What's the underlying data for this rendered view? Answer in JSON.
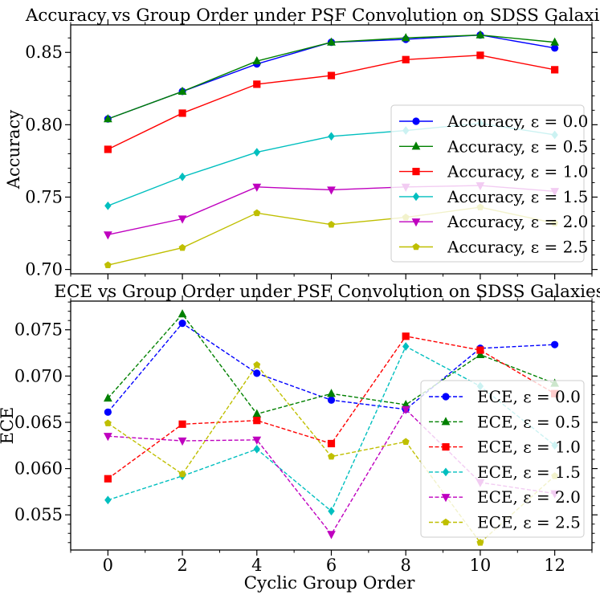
{
  "figure": {
    "xlabel": "Cyclic Group Order"
  },
  "chart_data": [
    {
      "type": "line",
      "title": "Accuracy vs Group Order under PSF Convolution on SDSS Galaxies",
      "xlabel": "",
      "ylabel": "Accuracy",
      "x": [
        0,
        2,
        4,
        6,
        8,
        10,
        12
      ],
      "xlim": [
        -1,
        13
      ],
      "ylim": [
        0.697,
        0.869
      ],
      "yticks": [
        0.7,
        0.75,
        0.8,
        0.85
      ],
      "ytick_labels": [
        "0.70",
        "0.75",
        "0.80",
        "0.85"
      ],
      "legend_loc": "lower right",
      "series": [
        {
          "name": "Accuracy, ε = 0.0",
          "color": "#0000ff",
          "marker": "circle",
          "dashed": false,
          "values": [
            0.804,
            0.823,
            0.842,
            0.857,
            0.859,
            0.862,
            0.853
          ]
        },
        {
          "name": "Accuracy, ε = 0.5",
          "color": "#008000",
          "marker": "triangle-up",
          "dashed": false,
          "values": [
            0.804,
            0.823,
            0.844,
            0.857,
            0.86,
            0.862,
            0.857
          ]
        },
        {
          "name": "Accuracy, ε = 1.0",
          "color": "#ff0000",
          "marker": "square",
          "dashed": false,
          "values": [
            0.783,
            0.808,
            0.828,
            0.834,
            0.845,
            0.848,
            0.838
          ]
        },
        {
          "name": "Accuracy, ε = 1.5",
          "color": "#00bfbf",
          "marker": "diamond",
          "dashed": false,
          "values": [
            0.744,
            0.764,
            0.781,
            0.792,
            0.796,
            0.801,
            0.793
          ]
        },
        {
          "name": "Accuracy, ε = 2.0",
          "color": "#bf00bf",
          "marker": "triangle-down",
          "dashed": false,
          "values": [
            0.724,
            0.735,
            0.757,
            0.755,
            0.757,
            0.758,
            0.754
          ]
        },
        {
          "name": "Accuracy, ε = 2.5",
          "color": "#bfbf00",
          "marker": "pentagon",
          "dashed": false,
          "values": [
            0.703,
            0.715,
            0.739,
            0.731,
            0.736,
            0.743,
            0.732
          ]
        }
      ]
    },
    {
      "type": "line",
      "title": "ECE vs Group Order under PSF Convolution on SDSS Galaxies",
      "xlabel": "Cyclic Group Order",
      "ylabel": "ECE",
      "x": [
        0,
        2,
        4,
        6,
        8,
        10,
        12
      ],
      "xlim": [
        -1,
        13
      ],
      "ylim": [
        0.0512,
        0.0781
      ],
      "yticks": [
        0.055,
        0.06,
        0.065,
        0.07,
        0.075
      ],
      "ytick_labels": [
        "0.055",
        "0.060",
        "0.065",
        "0.070",
        "0.075"
      ],
      "xticks": [
        0,
        2,
        4,
        6,
        8,
        10,
        12
      ],
      "xtick_labels": [
        "0",
        "2",
        "4",
        "6",
        "8",
        "10",
        "12"
      ],
      "legend_loc": "lower right",
      "series": [
        {
          "name": "ECE, ε = 0.0",
          "color": "#0000ff",
          "marker": "circle",
          "dashed": true,
          "values": [
            0.0661,
            0.0757,
            0.0703,
            0.0674,
            0.0664,
            0.073,
            0.0734
          ]
        },
        {
          "name": "ECE, ε = 0.5",
          "color": "#008000",
          "marker": "triangle-up",
          "dashed": true,
          "values": [
            0.0676,
            0.0767,
            0.0659,
            0.0681,
            0.0669,
            0.0723,
            0.0692
          ]
        },
        {
          "name": "ECE, ε = 1.0",
          "color": "#ff0000",
          "marker": "square",
          "dashed": true,
          "values": [
            0.0589,
            0.0648,
            0.0652,
            0.0627,
            0.0743,
            0.0728,
            0.0681
          ]
        },
        {
          "name": "ECE, ε = 1.5",
          "color": "#00bfbf",
          "marker": "diamond",
          "dashed": true,
          "values": [
            0.0566,
            0.0592,
            0.0621,
            0.0554,
            0.0732,
            0.0689,
            0.0625
          ]
        },
        {
          "name": "ECE, ε = 2.0",
          "color": "#bf00bf",
          "marker": "triangle-down",
          "dashed": true,
          "values": [
            0.0635,
            0.063,
            0.0631,
            0.0529,
            0.0664,
            0.0585,
            0.0573
          ]
        },
        {
          "name": "ECE, ε = 2.5",
          "color": "#bfbf00",
          "marker": "pentagon",
          "dashed": true,
          "values": [
            0.0649,
            0.0594,
            0.0712,
            0.0613,
            0.0629,
            0.052,
            0.0592
          ]
        }
      ]
    }
  ]
}
